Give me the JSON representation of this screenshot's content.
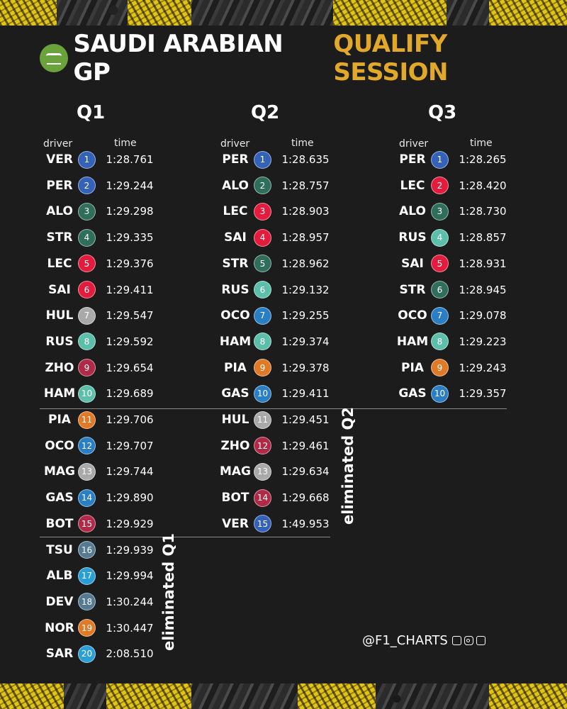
{
  "title": {
    "main": "SAUDI ARABIAN GP",
    "accent": "QUALIFY SESSION"
  },
  "colors": {
    "accent": "#e2a82a",
    "background": "#1c1c1c",
    "Red Bull": "#3462b8",
    "Aston Martin": "#2e6e5a",
    "Ferrari": "#e31c3d",
    "Haas": "#a9a9a9",
    "Mercedes": "#5cbfa9",
    "Alfa Romeo": "#b02a47",
    "McLaren": "#e07a27",
    "Alpine": "#2a7fc4",
    "AlphaTauri": "#557a93",
    "Williams": "#2a9fd6"
  },
  "headers": {
    "driver": "driver",
    "time": "time"
  },
  "sessions": [
    {
      "name": "Q1",
      "rows": [
        {
          "pos": "1",
          "driver": "VER",
          "time": "1:28.761",
          "team": "Red Bull"
        },
        {
          "pos": "2",
          "driver": "PER",
          "time": "1:29.244",
          "team": "Red Bull"
        },
        {
          "pos": "3",
          "driver": "ALO",
          "time": "1:29.298",
          "team": "Aston Martin"
        },
        {
          "pos": "4",
          "driver": "STR",
          "time": "1:29.335",
          "team": "Aston Martin"
        },
        {
          "pos": "5",
          "driver": "LEC",
          "time": "1:29.376",
          "team": "Ferrari"
        },
        {
          "pos": "6",
          "driver": "SAI",
          "time": "1:29.411",
          "team": "Ferrari"
        },
        {
          "pos": "7",
          "driver": "HUL",
          "time": "1:29.547",
          "team": "Haas"
        },
        {
          "pos": "8",
          "driver": "RUS",
          "time": "1:29.592",
          "team": "Mercedes"
        },
        {
          "pos": "9",
          "driver": "ZHO",
          "time": "1:29.654",
          "team": "Alfa Romeo"
        },
        {
          "pos": "10",
          "driver": "HAM",
          "time": "1:29.689",
          "team": "Mercedes"
        },
        {
          "pos": "11",
          "driver": "PIA",
          "time": "1:29.706",
          "team": "McLaren"
        },
        {
          "pos": "12",
          "driver": "OCO",
          "time": "1:29.707",
          "team": "Alpine"
        },
        {
          "pos": "13",
          "driver": "MAG",
          "time": "1:29.744",
          "team": "Haas"
        },
        {
          "pos": "14",
          "driver": "GAS",
          "time": "1:29.890",
          "team": "Alpine"
        },
        {
          "pos": "15",
          "driver": "BOT",
          "time": "1:29.929",
          "team": "Alfa Romeo"
        },
        {
          "pos": "16",
          "driver": "TSU",
          "time": "1:29.939",
          "team": "AlphaTauri"
        },
        {
          "pos": "17",
          "driver": "ALB",
          "time": "1:29.994",
          "team": "Williams"
        },
        {
          "pos": "18",
          "driver": "DEV",
          "time": "1:30.244",
          "team": "AlphaTauri"
        },
        {
          "pos": "19",
          "driver": "NOR",
          "time": "1:30.447",
          "team": "McLaren"
        },
        {
          "pos": "20",
          "driver": "SAR",
          "time": "2:08.510",
          "team": "Williams"
        }
      ]
    },
    {
      "name": "Q2",
      "rows": [
        {
          "pos": "1",
          "driver": "PER",
          "time": "1:28.635",
          "team": "Red Bull"
        },
        {
          "pos": "2",
          "driver": "ALO",
          "time": "1:28.757",
          "team": "Aston Martin"
        },
        {
          "pos": "3",
          "driver": "LEC",
          "time": "1:28.903",
          "team": "Ferrari"
        },
        {
          "pos": "4",
          "driver": "SAI",
          "time": "1:28.957",
          "team": "Ferrari"
        },
        {
          "pos": "5",
          "driver": "STR",
          "time": "1:28.962",
          "team": "Aston Martin"
        },
        {
          "pos": "6",
          "driver": "RUS",
          "time": "1:29.132",
          "team": "Mercedes"
        },
        {
          "pos": "7",
          "driver": "OCO",
          "time": "1:29.255",
          "team": "Alpine"
        },
        {
          "pos": "8",
          "driver": "HAM",
          "time": "1:29.374",
          "team": "Mercedes"
        },
        {
          "pos": "9",
          "driver": "PIA",
          "time": "1:29.378",
          "team": "McLaren"
        },
        {
          "pos": "10",
          "driver": "GAS",
          "time": "1:29.411",
          "team": "Alpine"
        },
        {
          "pos": "11",
          "driver": "HUL",
          "time": "1:29.451",
          "team": "Haas"
        },
        {
          "pos": "12",
          "driver": "ZHO",
          "time": "1:29.461",
          "team": "Alfa Romeo"
        },
        {
          "pos": "13",
          "driver": "MAG",
          "time": "1:29.634",
          "team": "Haas"
        },
        {
          "pos": "14",
          "driver": "BOT",
          "time": "1:29.668",
          "team": "Alfa Romeo"
        },
        {
          "pos": "15",
          "driver": "VER",
          "time": "1:49.953",
          "team": "Red Bull"
        }
      ]
    },
    {
      "name": "Q3",
      "rows": [
        {
          "pos": "1",
          "driver": "PER",
          "time": "1:28.265",
          "team": "Red Bull"
        },
        {
          "pos": "2",
          "driver": "LEC",
          "time": "1:28.420",
          "team": "Ferrari"
        },
        {
          "pos": "3",
          "driver": "ALO",
          "time": "1:28.730",
          "team": "Aston Martin"
        },
        {
          "pos": "4",
          "driver": "RUS",
          "time": "1:28.857",
          "team": "Mercedes"
        },
        {
          "pos": "5",
          "driver": "SAI",
          "time": "1:28.931",
          "team": "Ferrari"
        },
        {
          "pos": "6",
          "driver": "STR",
          "time": "1:28.945",
          "team": "Aston Martin"
        },
        {
          "pos": "7",
          "driver": "OCO",
          "time": "1:29.078",
          "team": "Alpine"
        },
        {
          "pos": "8",
          "driver": "HAM",
          "time": "1:29.223",
          "team": "Mercedes"
        },
        {
          "pos": "9",
          "driver": "PIA",
          "time": "1:29.243",
          "team": "McLaren"
        },
        {
          "pos": "10",
          "driver": "GAS",
          "time": "1:29.357",
          "team": "Alpine"
        }
      ]
    }
  ],
  "eliminated": {
    "q1": "eliminated Q1",
    "q2": "eliminated Q2"
  },
  "footer": {
    "handle": "@F1_CHARTS",
    "social_icons": [
      "twitter-icon",
      "instagram-icon",
      "facebook-icon"
    ]
  }
}
